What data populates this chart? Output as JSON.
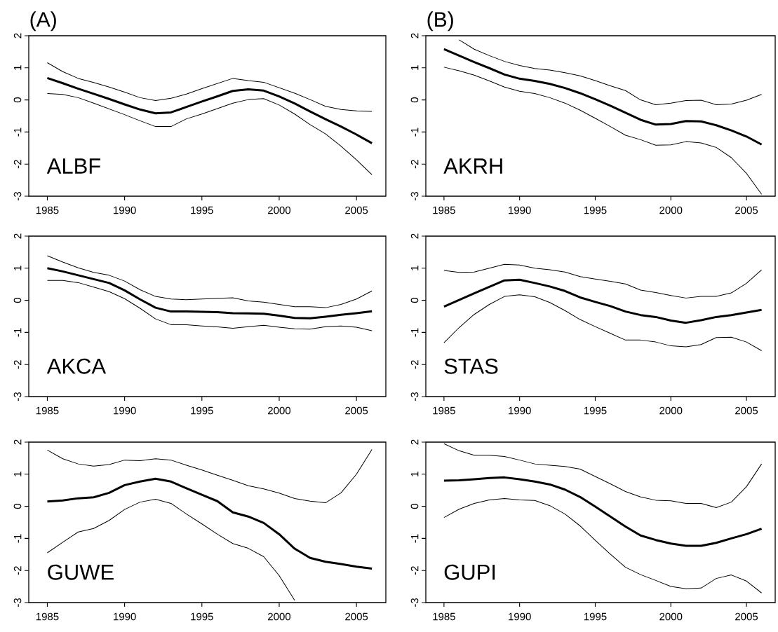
{
  "chart_data": [
    {
      "type": "line",
      "title": "(A)",
      "annotations": [
        "ALBF"
      ],
      "x": [
        1985,
        1986,
        1987,
        1988,
        1989,
        1990,
        1991,
        1992,
        1993,
        1994,
        1995,
        1996,
        1997,
        1998,
        1999,
        2000,
        2001,
        2002,
        2003,
        2004,
        2005,
        2006
      ],
      "xlim": [
        1983.8,
        2006.9
      ],
      "ylim": [
        -3,
        2
      ],
      "xticks": [
        1985,
        1990,
        1995,
        2000,
        2005
      ],
      "yticks": [
        -3,
        -2,
        -1,
        0,
        1,
        2
      ],
      "series": [
        {
          "color": "#000000",
          "values": [
            0.68,
            0.52,
            0.35,
            0.19,
            0.03,
            -0.14,
            -0.3,
            -0.42,
            -0.39,
            -0.22,
            -0.05,
            0.11,
            0.28,
            0.33,
            0.29,
            0.11,
            -0.11,
            -0.36,
            -0.6,
            -0.83,
            -1.08,
            -1.35
          ]
        },
        {
          "color": "#000000",
          "values": [
            1.16,
            0.88,
            0.67,
            0.54,
            0.4,
            0.24,
            0.07,
            -0.02,
            0.05,
            0.18,
            0.35,
            0.51,
            0.67,
            0.6,
            0.55,
            0.38,
            0.21,
            0.01,
            -0.2,
            -0.3,
            -0.34,
            -0.36
          ]
        },
        {
          "color": "#000000",
          "values": [
            0.2,
            0.17,
            0.07,
            -0.1,
            -0.28,
            -0.46,
            -0.65,
            -0.83,
            -0.83,
            -0.59,
            -0.44,
            -0.27,
            -0.1,
            0.01,
            0.04,
            -0.16,
            -0.44,
            -0.77,
            -1.06,
            -1.44,
            -1.87,
            -2.33
          ]
        }
      ]
    },
    {
      "type": "line",
      "title": "(B)",
      "annotations": [
        "AKRH"
      ],
      "x": [
        1985,
        1986,
        1987,
        1988,
        1989,
        1990,
        1991,
        1992,
        1993,
        1994,
        1995,
        1996,
        1997,
        1998,
        1999,
        2000,
        2001,
        2002,
        2003,
        2004,
        2005,
        2006
      ],
      "xlim": [
        1983.8,
        2006.9
      ],
      "ylim": [
        -3,
        2
      ],
      "xticks": [
        1985,
        1990,
        1995,
        2000,
        2005
      ],
      "yticks": [
        -3,
        -2,
        -1,
        0,
        1,
        2
      ],
      "series": [
        {
          "color": "#000000",
          "values": [
            1.58,
            1.38,
            1.18,
            0.99,
            0.79,
            0.66,
            0.59,
            0.5,
            0.37,
            0.21,
            0.02,
            -0.18,
            -0.4,
            -0.62,
            -0.77,
            -0.75,
            -0.66,
            -0.67,
            -0.79,
            -0.95,
            -1.14,
            -1.39
          ]
        },
        {
          "color": "#000000",
          "values": [
            null,
            1.87,
            1.58,
            1.38,
            1.2,
            1.07,
            0.98,
            0.93,
            0.85,
            0.75,
            0.6,
            0.44,
            0.29,
            0.0,
            -0.15,
            -0.1,
            -0.02,
            -0.01,
            -0.15,
            -0.13,
            -0.01,
            0.17
          ]
        },
        {
          "color": "#000000",
          "values": [
            1.02,
            0.91,
            0.77,
            0.59,
            0.4,
            0.27,
            0.2,
            0.07,
            -0.1,
            -0.32,
            -0.57,
            -0.83,
            -1.1,
            -1.24,
            -1.41,
            -1.4,
            -1.3,
            -1.34,
            -1.48,
            -1.8,
            -2.29,
            -2.94
          ]
        }
      ]
    },
    {
      "type": "line",
      "annotations": [
        "AKCA"
      ],
      "x": [
        1985,
        1986,
        1987,
        1988,
        1989,
        1990,
        1991,
        1992,
        1993,
        1994,
        1995,
        1996,
        1997,
        1998,
        1999,
        2000,
        2001,
        2002,
        2003,
        2004,
        2005,
        2006
      ],
      "xlim": [
        1983.8,
        2006.9
      ],
      "ylim": [
        -3,
        2
      ],
      "xticks": [
        1985,
        1990,
        1995,
        2000,
        2005
      ],
      "yticks": [
        -3,
        -2,
        -1,
        0,
        1,
        2
      ],
      "series": [
        {
          "color": "#000000",
          "values": [
            1.0,
            0.9,
            0.78,
            0.66,
            0.54,
            0.31,
            0.03,
            -0.23,
            -0.35,
            -0.35,
            -0.36,
            -0.37,
            -0.4,
            -0.41,
            -0.42,
            -0.48,
            -0.55,
            -0.56,
            -0.51,
            -0.45,
            -0.4,
            -0.34
          ]
        },
        {
          "color": "#000000",
          "values": [
            1.39,
            1.19,
            1.01,
            0.87,
            0.78,
            0.6,
            0.33,
            0.12,
            0.04,
            0.02,
            0.04,
            0.06,
            0.08,
            -0.02,
            -0.06,
            -0.13,
            -0.2,
            -0.2,
            -0.23,
            -0.13,
            0.04,
            0.29
          ]
        },
        {
          "color": "#000000",
          "values": [
            0.62,
            0.62,
            0.55,
            0.41,
            0.27,
            0.05,
            -0.25,
            -0.58,
            -0.76,
            -0.76,
            -0.8,
            -0.83,
            -0.87,
            -0.82,
            -0.78,
            -0.84,
            -0.89,
            -0.9,
            -0.82,
            -0.8,
            -0.84,
            -0.95
          ]
        }
      ]
    },
    {
      "type": "line",
      "annotations": [
        "STAS"
      ],
      "x": [
        1985,
        1986,
        1987,
        1988,
        1989,
        1990,
        1991,
        1992,
        1993,
        1994,
        1995,
        1996,
        1997,
        1998,
        1999,
        2000,
        2001,
        2002,
        2003,
        2004,
        2005,
        2006
      ],
      "xlim": [
        1983.8,
        2006.9
      ],
      "ylim": [
        -3,
        2
      ],
      "xticks": [
        1985,
        1990,
        1995,
        2000,
        2005
      ],
      "yticks": [
        -3,
        -2,
        -1,
        0,
        1,
        2
      ],
      "series": [
        {
          "color": "#000000",
          "values": [
            -0.2,
            0.01,
            0.22,
            0.42,
            0.62,
            0.64,
            0.54,
            0.43,
            0.29,
            0.09,
            -0.05,
            -0.18,
            -0.35,
            -0.46,
            -0.52,
            -0.63,
            -0.7,
            -0.62,
            -0.52,
            -0.46,
            -0.38,
            -0.3
          ]
        },
        {
          "color": "#000000",
          "values": [
            0.93,
            0.87,
            0.88,
            1.0,
            1.12,
            1.1,
            1.0,
            0.95,
            0.88,
            0.74,
            0.66,
            0.59,
            0.51,
            0.32,
            0.24,
            0.15,
            0.07,
            0.12,
            0.12,
            0.23,
            0.53,
            0.95
          ]
        },
        {
          "color": "#000000",
          "values": [
            -1.32,
            -0.85,
            -0.44,
            -0.13,
            0.12,
            0.17,
            0.11,
            -0.07,
            -0.32,
            -0.6,
            -0.82,
            -1.03,
            -1.24,
            -1.24,
            -1.3,
            -1.42,
            -1.45,
            -1.38,
            -1.16,
            -1.15,
            -1.3,
            -1.57
          ]
        }
      ]
    },
    {
      "type": "line",
      "annotations": [
        "GUWE"
      ],
      "x": [
        1985,
        1986,
        1987,
        1988,
        1989,
        1990,
        1991,
        1992,
        1993,
        1994,
        1995,
        1996,
        1997,
        1998,
        1999,
        2000,
        2001,
        2002,
        2003,
        2004,
        2005,
        2006
      ],
      "xlim": [
        1983.8,
        2006.9
      ],
      "ylim": [
        -3,
        2
      ],
      "xticks": [
        1985,
        1990,
        1995,
        2000,
        2005
      ],
      "yticks": [
        -3,
        -2,
        -1,
        0,
        1,
        2
      ],
      "series": [
        {
          "color": "#000000",
          "values": [
            0.15,
            0.18,
            0.25,
            0.28,
            0.42,
            0.66,
            0.77,
            0.86,
            0.77,
            0.56,
            0.36,
            0.16,
            -0.19,
            -0.32,
            -0.52,
            -0.87,
            -1.32,
            -1.61,
            -1.73,
            -1.8,
            -1.88,
            -1.94
          ]
        },
        {
          "color": "#000000",
          "values": [
            1.75,
            1.48,
            1.32,
            1.25,
            1.3,
            1.44,
            1.42,
            1.48,
            1.44,
            1.28,
            1.13,
            0.97,
            0.81,
            0.64,
            0.54,
            0.41,
            0.24,
            0.16,
            0.11,
            0.42,
            1.0,
            1.77
          ]
        },
        {
          "color": "#000000",
          "values": [
            -1.45,
            -1.12,
            -0.8,
            -0.69,
            -0.44,
            -0.1,
            0.13,
            0.22,
            0.09,
            -0.24,
            -0.55,
            -0.87,
            -1.16,
            -1.31,
            -1.57,
            -2.16,
            -2.93,
            null,
            null,
            null,
            null,
            null
          ]
        }
      ]
    },
    {
      "type": "line",
      "annotations": [
        "GUPI"
      ],
      "x": [
        1985,
        1986,
        1987,
        1988,
        1989,
        1990,
        1991,
        1992,
        1993,
        1994,
        1995,
        1996,
        1997,
        1998,
        1999,
        2000,
        2001,
        2002,
        2003,
        2004,
        2005,
        2006
      ],
      "xlim": [
        1983.8,
        2006.9
      ],
      "ylim": [
        -3,
        2
      ],
      "xticks": [
        1985,
        1990,
        1995,
        2000,
        2005
      ],
      "yticks": [
        -3,
        -2,
        -1,
        0,
        1,
        2
      ],
      "series": [
        {
          "color": "#000000",
          "values": [
            0.8,
            0.81,
            0.84,
            0.88,
            0.9,
            0.84,
            0.77,
            0.68,
            0.52,
            0.29,
            -0.01,
            -0.32,
            -0.63,
            -0.91,
            -1.05,
            -1.16,
            -1.23,
            -1.23,
            -1.14,
            -1.0,
            -0.87,
            -0.7
          ]
        },
        {
          "color": "#000000",
          "values": [
            1.95,
            1.73,
            1.59,
            1.59,
            1.55,
            1.44,
            1.32,
            1.28,
            1.24,
            1.16,
            0.93,
            0.7,
            0.46,
            0.29,
            0.19,
            0.17,
            0.09,
            0.09,
            -0.04,
            0.13,
            0.61,
            1.32
          ]
        },
        {
          "color": "#000000",
          "values": [
            -0.35,
            -0.09,
            0.09,
            0.2,
            0.24,
            0.2,
            0.18,
            0.02,
            -0.24,
            -0.61,
            -1.06,
            -1.49,
            -1.9,
            -2.13,
            -2.31,
            -2.5,
            -2.57,
            -2.55,
            -2.25,
            -2.14,
            -2.33,
            -2.7
          ]
        }
      ]
    }
  ]
}
